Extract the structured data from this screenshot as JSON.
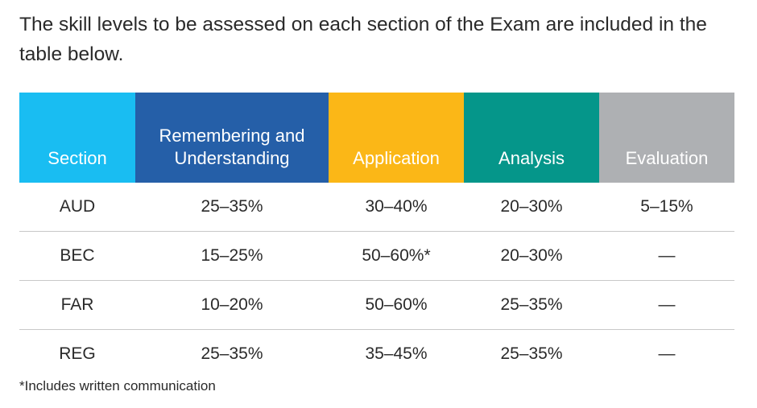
{
  "intro_text": "The skill levels to be assessed on each section of the Exam are included in the table below.",
  "table": {
    "headers": [
      {
        "label": "Section",
        "color": "#19bdf2"
      },
      {
        "label": "Remembering and Understanding",
        "color": "#255fa8"
      },
      {
        "label": "Application",
        "color": "#fbb717"
      },
      {
        "label": "Analysis",
        "color": "#05968a"
      },
      {
        "label": "Evaluation",
        "color": "#aeb0b3"
      }
    ],
    "rows": [
      [
        "AUD",
        "25–35%",
        "30–40%",
        "20–30%",
        "5–15%"
      ],
      [
        "BEC",
        "15–25%",
        "50–60%*",
        "20–30%",
        "—"
      ],
      [
        "FAR",
        "10–20%",
        "50–60%",
        "25–35%",
        "—"
      ],
      [
        "REG",
        "25–35%",
        "35–45%",
        "25–35%",
        "—"
      ]
    ]
  },
  "footnote": "*Includes written communication"
}
